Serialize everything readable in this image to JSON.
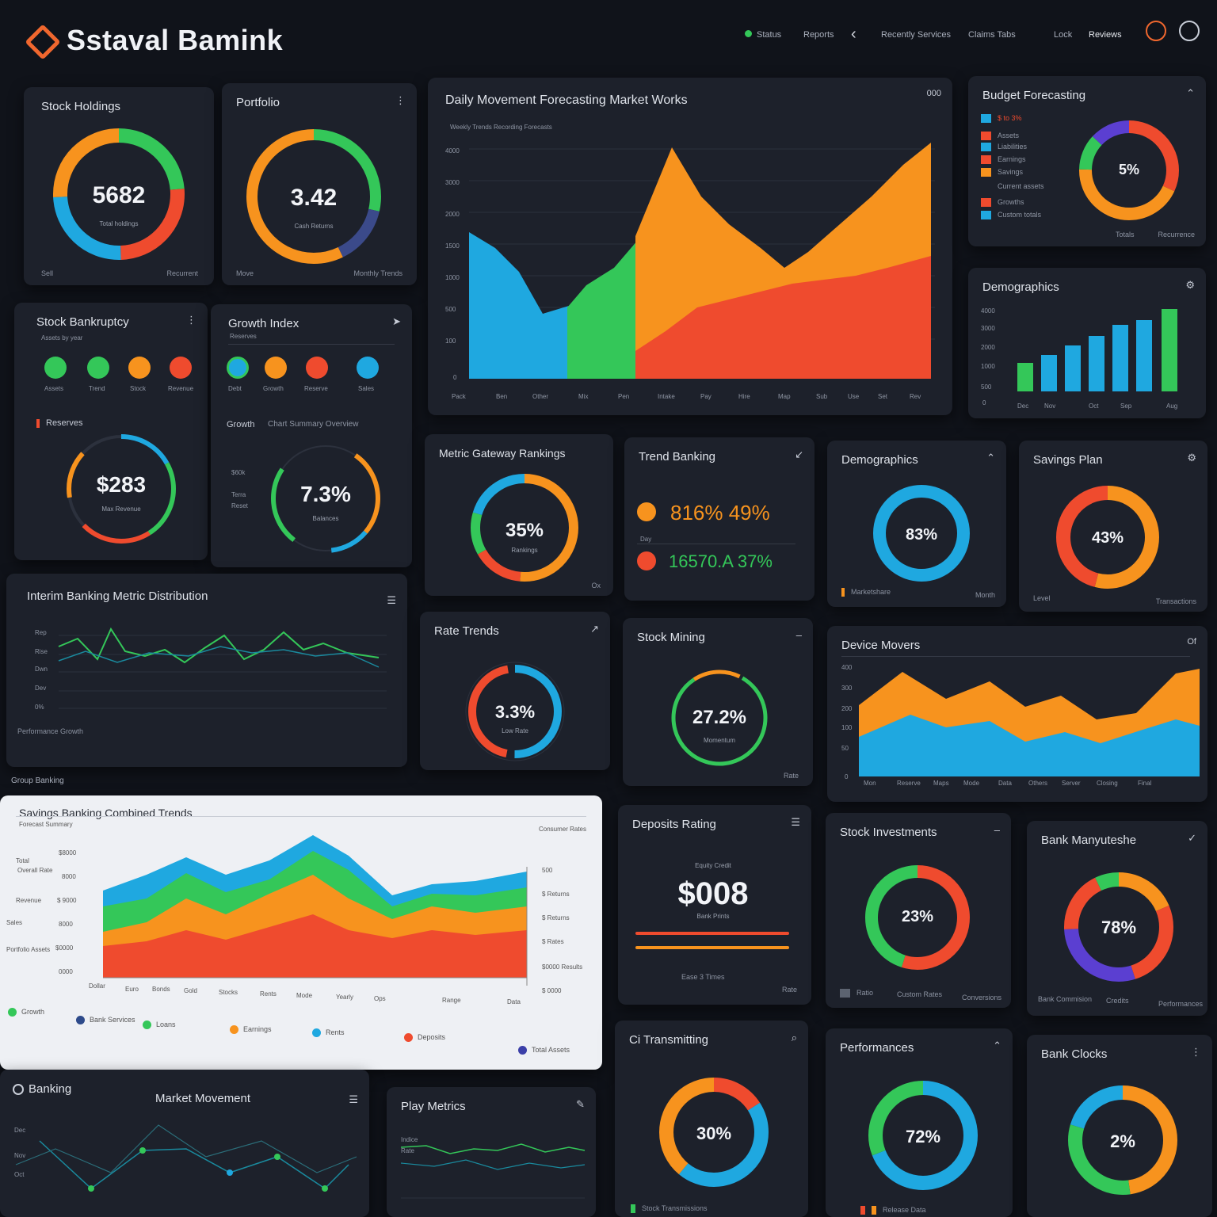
{
  "app": {
    "title": "Sstaval Bamink",
    "nav": [
      "Status",
      "Reports",
      "Recently Services",
      "Claims Tabs",
      "Lock",
      "Reviews"
    ]
  },
  "colors": {
    "green": "#34c759",
    "orange": "#f7931e",
    "red": "#ef4b2e",
    "blue": "#1fa8e0",
    "purple": "#5b3fd1",
    "bg": "#10131a",
    "card": "#1d212b"
  },
  "cards": {
    "c1": {
      "title": "Stock Holdings",
      "value": "5682",
      "sub": "Total holdings",
      "foot_l": "Sell",
      "foot_r": "Recurrent"
    },
    "c2": {
      "title": "Portfolio",
      "value": "3.42",
      "sub": "Cash Returns",
      "foot_l": "Move",
      "foot_r": "Monthly Trends"
    },
    "main": {
      "title": "Daily Movement Forecasting Market Works",
      "sub": "Weekly Trends Recording Forecasts",
      "icon": "000"
    },
    "c4": {
      "title": "Budget Forecasting",
      "value": "5%",
      "legend": [
        "$ to 3%",
        "Assets",
        "Liabilities",
        "Earnings",
        "Savings",
        "Current assets",
        "Growths",
        "Custom totals"
      ],
      "foot_l": "Totals",
      "foot_r": "Recurrence"
    },
    "c5": {
      "title": "Demographics",
      "yaxis": [
        "4000",
        "3000",
        "2000",
        "1000",
        "500",
        "0"
      ],
      "xaxis": [
        "Dec",
        "Nov",
        "Oct",
        "Sep",
        "Aug"
      ]
    },
    "c6": {
      "title": "Stock Bankruptcy",
      "sub": "Assets by year",
      "circles": [
        "Assets",
        "Trend",
        "Stock",
        "Revenue"
      ],
      "label": "Reserves",
      "value": "$283",
      "sub2": "Max Revenue"
    },
    "c7": {
      "title": "Growth Index",
      "sub": "Reserves",
      "circles": [
        "Debt",
        "Growth",
        "Reserve",
        "Sales"
      ],
      "label": "Growth",
      "label2": "Chart Summary Overview",
      "axis": [
        "$60k",
        "Terra",
        "Reset"
      ],
      "value": "7.3%",
      "sub2": "Balances"
    },
    "c8": {
      "title": "Metric Gateway Rankings",
      "value": "35%",
      "sub": "Rankings",
      "foot": "Ox"
    },
    "c9": {
      "title": "Trend Banking",
      "row1": "816% 49%",
      "row2": "16570.A 37%",
      "lbl": "Day"
    },
    "c10": {
      "title": "Demographics",
      "value": "83%",
      "foot_l": "Marketshare",
      "foot_r": "Month"
    },
    "c11": {
      "title": "Savings Plan",
      "value": "43%",
      "foot_l": "Level",
      "foot_r": "Transactions"
    },
    "c12": {
      "title": "Interim Banking Metric Distribution",
      "yaxis": [
        "Rep",
        "Rise",
        "Dwn",
        "Dev",
        "0%"
      ],
      "foot": "Performance Growth"
    },
    "c13": {
      "title": "Rate Trends",
      "value": "3.3%",
      "sub": "Low Rate"
    },
    "c14": {
      "title": "Stock Mining",
      "value": "27.2%",
      "sub": "Momentum",
      "foot": "Rate"
    },
    "c15": {
      "title": "Device Movers",
      "icon": "Of",
      "yaxis": [
        "400",
        "300",
        "200",
        "100",
        "50",
        "0"
      ],
      "xaxis": [
        "Mon",
        "Reserve",
        "Maps",
        "Mode",
        "Data",
        "Others",
        "Server",
        "Closing",
        "Final"
      ]
    },
    "c16": {
      "top": "Group Banking",
      "title": "Savings Banking Combined Trends",
      "sub": "Forecast Summary",
      "right": "Consumer Rates",
      "legend": [
        "Growth",
        "Bank Services",
        "Loans",
        "Earnings",
        "Rents",
        "Deposits",
        "Total Assets"
      ],
      "left": [
        "Total",
        "Revenue",
        "Sales",
        "Portfolio Assets",
        "Overall Rate"
      ],
      "leftval": [
        "$8000",
        "8000",
        "$ 9000",
        "8000",
        "$0000",
        "0000"
      ],
      "right_axis": [
        "500",
        "$ Returns",
        "$ Returns",
        "$ Rates",
        "$0000 Results",
        "$ 0000"
      ],
      "xaxis": [
        "Dollar",
        "Euro",
        "Bonds",
        "Gold",
        "Stocks",
        "Rents",
        "Mode",
        "Yearly",
        "Ops",
        "Range",
        "Data"
      ]
    },
    "c17": {
      "title": "Deposits Rating",
      "value": "$008",
      "top": "Equity Credit",
      "sub": "Bank Prints",
      "foot_l": "Ease 3 Times",
      "foot_r": "Rate"
    },
    "c18": {
      "title": "Stock Investments",
      "value": "23%",
      "foot_l": "Ratio",
      "foot_m": "Custom Rates",
      "foot_r": "Conversions"
    },
    "c19": {
      "title": "Bank Manyuteshe",
      "value": "78%",
      "foot_l": "Bank Commision",
      "foot_m": "Credits",
      "foot_r": "Performances"
    },
    "c20": {
      "title": "Banking",
      "title2": "Market Movement",
      "yaxis": [
        "Dec",
        "Nov",
        "Oct"
      ]
    },
    "c21": {
      "title": "Play Metrics",
      "axis": [
        "Indice",
        "Rate"
      ]
    },
    "c22": {
      "title": "Ci Transmitting",
      "value": "30%",
      "foot": "Stock Transmissions"
    },
    "c23": {
      "title": "Performances",
      "value": "72%",
      "foot": "Release Data"
    },
    "c24": {
      "title": "Bank Clocks",
      "value": "2%"
    }
  }
}
